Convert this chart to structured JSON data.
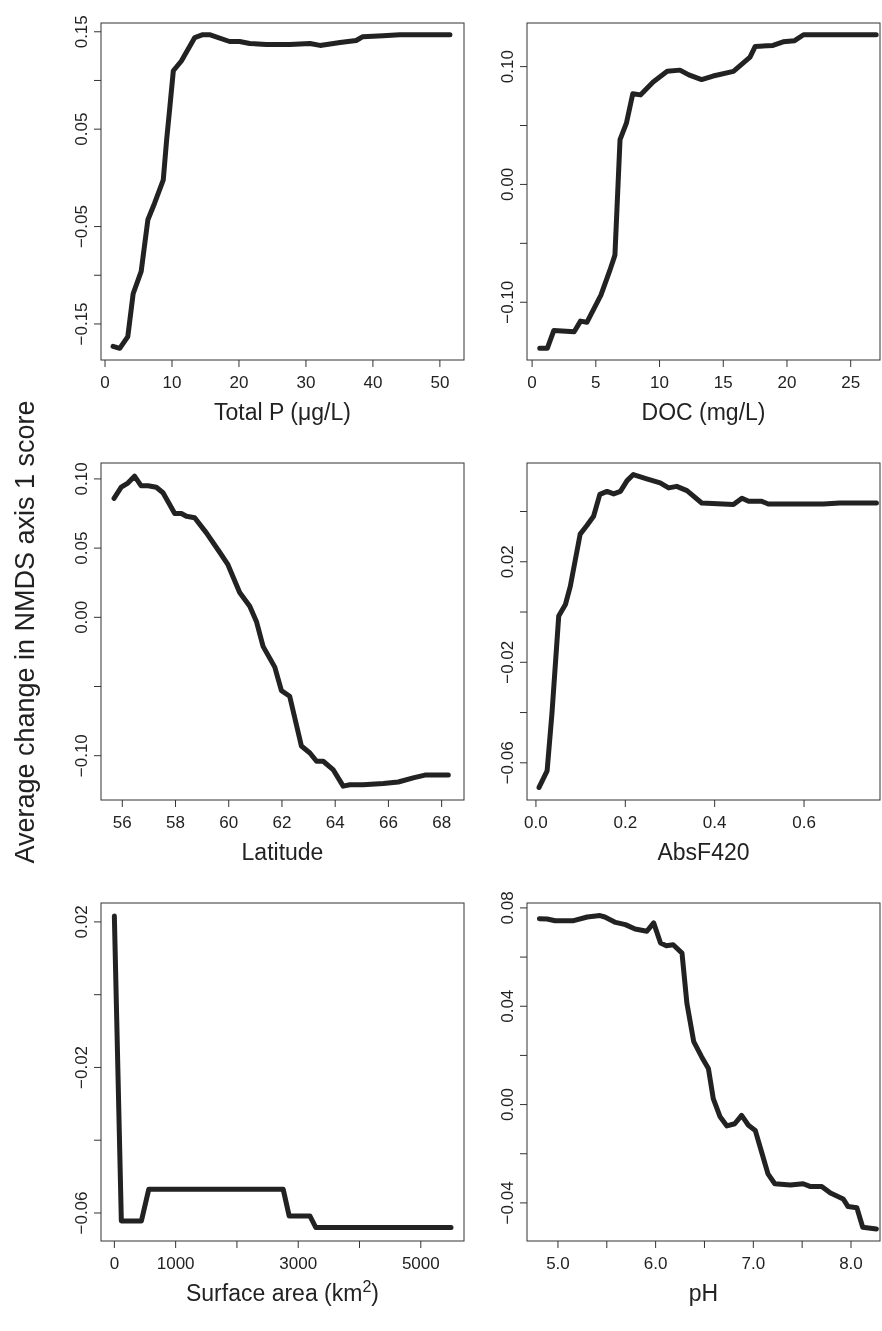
{
  "chart_data": [
    {
      "type": "line",
      "xlabel": "Total P (μg/L)",
      "xlim": [
        -0.6,
        53.6
      ],
      "ylim": [
        -0.187,
        0.159
      ],
      "xticks": [
        0,
        10,
        20,
        30,
        40,
        50
      ],
      "yticks": [
        {
          "value": -0.15,
          "label": "−0.15"
        },
        {
          "value": -0.1,
          "label": null
        },
        {
          "value": -0.05,
          "label": "−0.05"
        },
        {
          "value": 0.05,
          "label": "0.05"
        },
        {
          "value": 0.1,
          "label": null
        },
        {
          "value": 0.15,
          "label": "0.15"
        }
      ],
      "x": [
        1.2,
        2.2,
        3.4,
        4.2,
        5.4,
        6.4,
        7.4,
        8.7,
        9.2,
        9.7,
        10.2,
        11.4,
        13.4,
        14.6,
        15.6,
        18.6,
        20.1,
        21.6,
        24.1,
        27.6,
        30.6,
        32.1,
        35.1,
        37.5,
        38.5,
        41.5,
        44.0,
        51.5
      ],
      "series": [
        {
          "color": "#222222",
          "values": [
            -0.173,
            -0.175,
            -0.163,
            -0.119,
            -0.096,
            -0.043,
            -0.026,
            -0.002,
            0.039,
            0.074,
            0.11,
            0.12,
            0.144,
            0.147,
            0.147,
            0.14,
            0.14,
            0.138,
            0.137,
            0.137,
            0.138,
            0.136,
            0.139,
            0.141,
            0.145,
            0.146,
            0.147,
            0.147
          ]
        }
      ]
    },
    {
      "type": "line",
      "xlabel": "DOC (mg/L)",
      "xlim": [
        -0.4,
        27.3
      ],
      "ylim": [
        -0.149,
        0.137
      ],
      "xticks": [
        0,
        5,
        10,
        15,
        20,
        25
      ],
      "yticks": [
        {
          "value": -0.1,
          "label": "−0.10"
        },
        {
          "value": -0.05,
          "label": null
        },
        {
          "value": 0,
          "label": "0.00"
        },
        {
          "value": 0.05,
          "label": null
        },
        {
          "value": 0.1,
          "label": "0.10"
        }
      ],
      "x": [
        0.6,
        1.2,
        1.7,
        3.3,
        3.8,
        4.3,
        5.4,
        6.1,
        6.5,
        6.9,
        7.4,
        7.9,
        8.5,
        9.5,
        10.6,
        11.6,
        12.3,
        13.3,
        14.2,
        15.8,
        17.1,
        17.5,
        18.9,
        19.7,
        20.6,
        21.3,
        24.2,
        27.0
      ],
      "series": [
        {
          "color": "#222222",
          "values": [
            -0.139,
            -0.139,
            -0.124,
            -0.125,
            -0.116,
            -0.117,
            -0.094,
            -0.073,
            -0.06,
            0.038,
            0.052,
            0.077,
            0.076,
            0.087,
            0.096,
            0.097,
            0.093,
            0.089,
            0.092,
            0.096,
            0.108,
            0.117,
            0.118,
            0.121,
            0.122,
            0.127,
            0.127,
            0.127
          ]
        }
      ]
    },
    {
      "type": "line",
      "xlabel": "Latitude",
      "ylabel": "Average change in NMDS axis 1 score",
      "xlim": [
        55.2,
        68.84
      ],
      "ylim": [
        -0.132,
        0.1115
      ],
      "xticks": [
        56,
        58,
        60,
        62,
        64,
        66,
        68
      ],
      "yticks": [
        {
          "value": -0.1,
          "label": "−0.10"
        },
        {
          "value": -0.05,
          "label": null
        },
        {
          "value": 0,
          "label": "0.00"
        },
        {
          "value": 0.05,
          "label": "0.05"
        },
        {
          "value": 0.1,
          "label": "0.10"
        }
      ],
      "x": [
        55.69,
        55.96,
        56.21,
        56.46,
        56.71,
        56.97,
        57.28,
        57.53,
        57.97,
        58.22,
        58.41,
        58.72,
        59.16,
        59.66,
        59.97,
        60.41,
        60.79,
        61.04,
        61.29,
        61.73,
        61.98,
        62.29,
        62.73,
        63.05,
        63.3,
        63.55,
        63.92,
        64.3,
        64.55,
        65.05,
        65.81,
        66.37,
        66.93,
        67.37,
        68.25
      ],
      "series": [
        {
          "color": "#222222",
          "values": [
            0.086,
            0.094,
            0.097,
            0.102,
            0.095,
            0.095,
            0.094,
            0.09,
            0.075,
            0.075,
            0.073,
            0.072,
            0.061,
            0.047,
            0.038,
            0.018,
            0.008,
            -0.003,
            -0.021,
            -0.036,
            -0.053,
            -0.057,
            -0.093,
            -0.098,
            -0.104,
            -0.104,
            -0.11,
            -0.122,
            -0.121,
            -0.121,
            -0.12,
            -0.119,
            -0.116,
            -0.114,
            -0.114
          ]
        }
      ]
    },
    {
      "type": "line",
      "xlabel": "AbsF420",
      "xlim": [
        -0.02,
        0.77
      ],
      "ylim": [
        -0.0748,
        0.0593
      ],
      "xticks": [
        {
          "value": 0,
          "label": "0.0"
        },
        0.2,
        0.4,
        0.6
      ],
      "yticks": [
        {
          "value": -0.06,
          "label": "−0.06"
        },
        {
          "value": -0.04,
          "label": null
        },
        {
          "value": -0.02,
          "label": "−0.02"
        },
        {
          "value": 0,
          "label": null
        },
        {
          "value": 0.02,
          "label": "0.02"
        },
        {
          "value": 0.04,
          "label": null
        }
      ],
      "x": [
        0.007,
        0.025,
        0.036,
        0.051,
        0.066,
        0.077,
        0.099,
        0.114,
        0.129,
        0.143,
        0.159,
        0.174,
        0.189,
        0.204,
        0.218,
        0.248,
        0.278,
        0.297,
        0.315,
        0.338,
        0.371,
        0.442,
        0.461,
        0.476,
        0.505,
        0.52,
        0.643,
        0.68,
        0.762
      ],
      "series": [
        {
          "color": "#222222",
          "values": [
            -0.0698,
            -0.0632,
            -0.04,
            -0.0016,
            0.003,
            0.0103,
            0.031,
            0.0344,
            0.0381,
            0.0468,
            0.048,
            0.047,
            0.048,
            0.0523,
            0.0547,
            0.053,
            0.0514,
            0.0494,
            0.05,
            0.0483,
            0.0434,
            0.0428,
            0.0453,
            0.0441,
            0.0441,
            0.043,
            0.043,
            0.0434,
            0.0434
          ]
        }
      ]
    },
    {
      "type": "line",
      "xlabel": "Surface area (km$^{2}$)",
      "xlim": [
        -218,
        5705
      ],
      "ylim": [
        -0.0677,
        0.0252
      ],
      "xticks": [
        0,
        1000,
        {
          "value": 2000,
          "label": null
        },
        3000,
        {
          "value": 4000,
          "label": null
        },
        5000
      ],
      "yticks": [
        {
          "value": -0.06,
          "label": "−0.06"
        },
        {
          "value": -0.04,
          "label": null
        },
        {
          "value": -0.02,
          "label": "−0.02"
        },
        {
          "value": 0,
          "label": null
        },
        {
          "value": 0.02,
          "label": "0.02"
        }
      ],
      "x": [
        0,
        114,
        441,
        561,
        2755,
        2852,
        3190,
        3288,
        5493
      ],
      "series": [
        {
          "color": "#222222",
          "values": [
            0.0216,
            -0.0622,
            -0.0622,
            -0.0535,
            -0.0535,
            -0.0608,
            -0.0608,
            -0.064,
            -0.064
          ]
        }
      ]
    },
    {
      "type": "line",
      "xlabel": "pH",
      "xlim": [
        4.683,
        8.297
      ],
      "ylim": [
        -0.0555,
        0.082
      ],
      "xticks": [
        {
          "value": 5,
          "label": "5.0"
        },
        {
          "value": 5.5,
          "label": null
        },
        {
          "value": 6,
          "label": "6.0"
        },
        {
          "value": 6.5,
          "label": null
        },
        {
          "value": 7,
          "label": "7.0"
        },
        {
          "value": 7.5,
          "label": null
        },
        {
          "value": 8,
          "label": "8.0"
        }
      ],
      "yticks": [
        {
          "value": -0.04,
          "label": "−0.04"
        },
        {
          "value": -0.02,
          "label": null
        },
        {
          "value": 0,
          "label": "0.00"
        },
        {
          "value": 0.02,
          "label": null
        },
        {
          "value": 0.04,
          "label": "0.04"
        },
        {
          "value": 0.06,
          "label": null
        },
        {
          "value": 0.08,
          "label": "0.08"
        }
      ],
      "x": [
        4.81,
        4.89,
        4.97,
        5.16,
        5.3,
        5.43,
        5.48,
        5.59,
        5.69,
        5.79,
        5.91,
        5.98,
        6.05,
        6.11,
        6.18,
        6.27,
        6.32,
        6.39,
        6.47,
        6.54,
        6.59,
        6.66,
        6.73,
        6.81,
        6.88,
        6.95,
        7.02,
        7.09,
        7.15,
        7.22,
        7.38,
        7.51,
        7.58,
        7.7,
        7.79,
        7.92,
        7.97,
        8.06,
        8.12,
        8.26
      ],
      "series": [
        {
          "color": "#222222",
          "values": [
            0.0756,
            0.0755,
            0.0748,
            0.0748,
            0.0763,
            0.0769,
            0.0763,
            0.0741,
            0.0732,
            0.0714,
            0.0705,
            0.0739,
            0.0657,
            0.0646,
            0.065,
            0.0616,
            0.0412,
            0.0256,
            0.0195,
            0.0147,
            0.0024,
            -0.005,
            -0.0087,
            -0.0078,
            -0.0044,
            -0.0084,
            -0.0105,
            -0.02,
            -0.0282,
            -0.0322,
            -0.0327,
            -0.0322,
            -0.0333,
            -0.0333,
            -0.036,
            -0.0384,
            -0.0415,
            -0.042,
            -0.0499,
            -0.0506
          ]
        }
      ]
    }
  ]
}
